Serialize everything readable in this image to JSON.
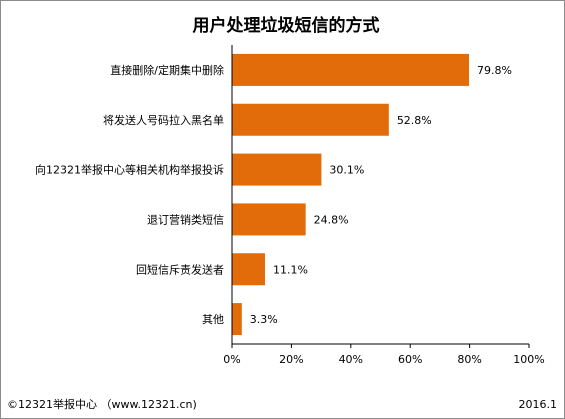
{
  "chart_data": {
    "type": "bar",
    "orientation": "horizontal",
    "title": "用户处理垃圾短信的方式",
    "categories": [
      "直接删除/定期集中删除",
      "将发送人号码拉入黑名单",
      "向12321举报中心等相关机构举报投诉",
      "退订营销类短信",
      "回短信斥责发送者",
      "其他"
    ],
    "values": [
      79.8,
      52.8,
      30.1,
      24.8,
      11.1,
      3.3
    ],
    "value_labels": [
      "79.8%",
      "52.8%",
      "30.1%",
      "24.8%",
      "11.1%",
      "3.3%"
    ],
    "xlim": [
      0,
      100
    ],
    "x_ticks": [
      0,
      20,
      40,
      60,
      80,
      100
    ],
    "x_tick_labels": [
      "0%",
      "20%",
      "40%",
      "60%",
      "80%",
      "100%"
    ],
    "grid": false,
    "bar_color": "#e36c0a"
  },
  "footer": {
    "source": "©12321举报中心 （www.12321.cn)",
    "date": "2016.1"
  }
}
